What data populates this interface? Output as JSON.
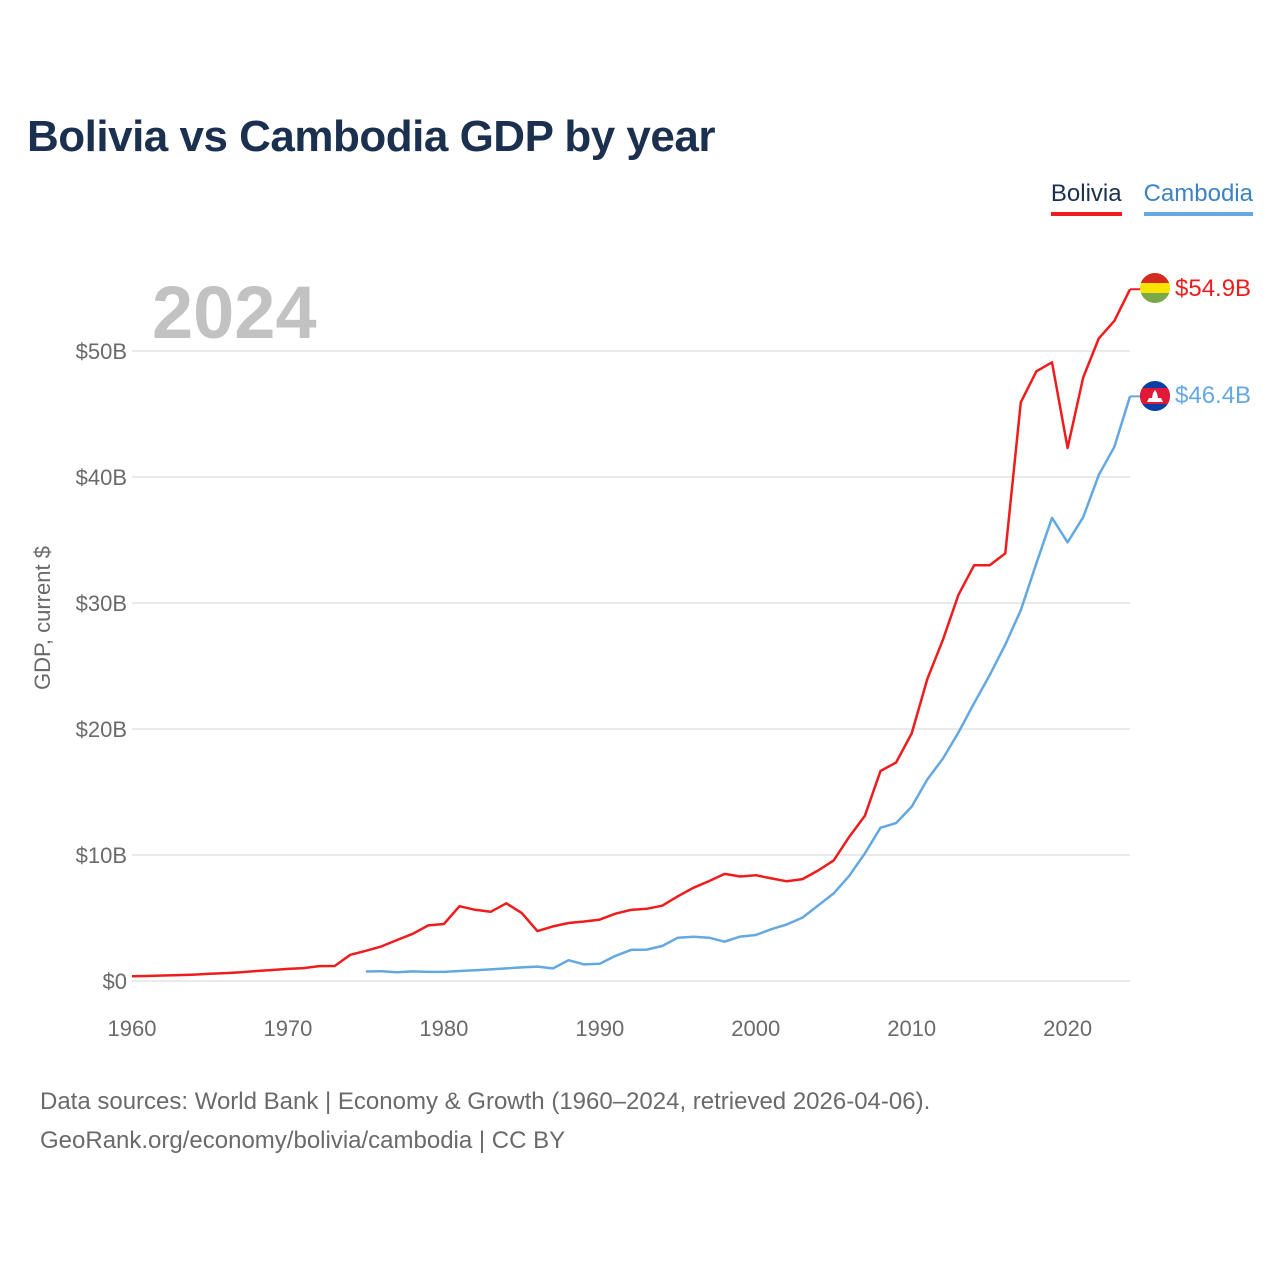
{
  "title": "Bolivia vs Cambodia GDP by year",
  "year_label": "2024",
  "ylabel": "GDP, current $",
  "legend": [
    {
      "name": "Bolivia",
      "color": "#ee1c1c"
    },
    {
      "name": "Cambodia",
      "color": "#64a8e2"
    }
  ],
  "end_labels": {
    "bolivia": "$54.9B",
    "cambodia": "$46.4B"
  },
  "source": {
    "line1": "Data sources: World Bank | Economy & Growth (1960–2024, retrieved 2026-04-06).",
    "line2": "GeoRank.org/economy/bolivia/cambodia | CC BY"
  },
  "colors": {
    "title": "#1b2f4f",
    "grid": "#e4e4e4",
    "axis_text": "#6a6a6a",
    "year_watermark": "#c2c2c2"
  },
  "chart_data": {
    "type": "line",
    "title": "Bolivia vs Cambodia GDP by year",
    "xlabel": "",
    "ylabel": "GDP, current $",
    "xlim": [
      1960,
      2024
    ],
    "ylim": [
      0,
      50
    ],
    "y_units": "billions USD",
    "xticks": [
      1960,
      1970,
      1980,
      1990,
      2000,
      2010,
      2020
    ],
    "xtick_labels": [
      "1960",
      "1970",
      "1980",
      "1990",
      "2000",
      "2010",
      "2020"
    ],
    "yticks": [
      0,
      10,
      20,
      30,
      40,
      50
    ],
    "ytick_labels": [
      "$0",
      "$10B",
      "$20B",
      "$30B",
      "$40B",
      "$50B"
    ],
    "grid": true,
    "legend_position": "top-right",
    "series": [
      {
        "name": "Bolivia",
        "color": "#ee1c1c",
        "end_label": "$54.9B",
        "x": [
          1960,
          1961,
          1962,
          1963,
          1964,
          1965,
          1966,
          1967,
          1968,
          1969,
          1970,
          1971,
          1972,
          1973,
          1974,
          1975,
          1976,
          1977,
          1978,
          1979,
          1980,
          1981,
          1982,
          1983,
          1984,
          1985,
          1986,
          1987,
          1988,
          1989,
          1990,
          1991,
          1992,
          1993,
          1994,
          1995,
          1996,
          1997,
          1998,
          1999,
          2000,
          2001,
          2002,
          2003,
          2004,
          2005,
          2006,
          2007,
          2008,
          2009,
          2010,
          2011,
          2012,
          2013,
          2014,
          2015,
          2016,
          2017,
          2018,
          2019,
          2020,
          2021,
          2022,
          2023,
          2024
        ],
        "values": [
          0.37,
          0.4,
          0.44,
          0.47,
          0.51,
          0.57,
          0.63,
          0.7,
          0.79,
          0.87,
          0.96,
          1.02,
          1.18,
          1.19,
          2.08,
          2.4,
          2.75,
          3.25,
          3.75,
          4.41,
          4.52,
          5.94,
          5.65,
          5.49,
          6.17,
          5.39,
          3.96,
          4.33,
          4.6,
          4.72,
          4.87,
          5.34,
          5.64,
          5.73,
          5.98,
          6.72,
          7.4,
          7.93,
          8.5,
          8.29,
          8.4,
          8.14,
          7.91,
          8.09,
          8.77,
          9.57,
          11.45,
          13.12,
          16.67,
          17.34,
          19.65,
          23.96,
          27.08,
          30.66,
          32.99,
          33.0,
          33.94,
          45.93,
          48.39,
          49.1,
          42.3,
          47.9,
          51.0,
          52.4,
          54.9
        ]
      },
      {
        "name": "Cambodia",
        "color": "#64a8e2",
        "end_label": "$46.4B",
        "x": [
          1975,
          1976,
          1977,
          1978,
          1979,
          1980,
          1981,
          1982,
          1983,
          1984,
          1985,
          1986,
          1987,
          1988,
          1989,
          1990,
          1991,
          1992,
          1993,
          1994,
          1995,
          1996,
          1997,
          1998,
          1999,
          2000,
          2001,
          2002,
          2003,
          2004,
          2005,
          2006,
          2007,
          2008,
          2009,
          2010,
          2011,
          2012,
          2013,
          2014,
          2015,
          2016,
          2017,
          2018,
          2019,
          2020,
          2021,
          2022,
          2023,
          2024
        ],
        "values": [
          0.75,
          0.78,
          0.7,
          0.76,
          0.72,
          0.72,
          0.79,
          0.85,
          0.92,
          1.0,
          1.08,
          1.14,
          1.0,
          1.65,
          1.32,
          1.37,
          1.99,
          2.47,
          2.49,
          2.78,
          3.44,
          3.51,
          3.44,
          3.12,
          3.52,
          3.65,
          4.11,
          4.49,
          5.03,
          5.99,
          6.95,
          8.36,
          10.13,
          12.17,
          12.53,
          13.84,
          15.99,
          17.65,
          19.73,
          22.05,
          24.28,
          26.7,
          29.43,
          33.15,
          36.76,
          34.82,
          36.81,
          40.17,
          42.4,
          46.4
        ]
      }
    ]
  }
}
